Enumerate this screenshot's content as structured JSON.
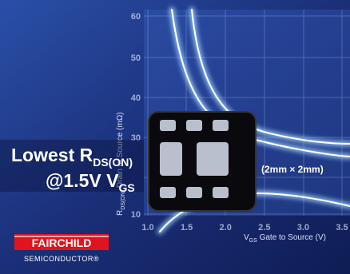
{
  "headline": {
    "line1": "Lowest R",
    "line1_sub": "DS(ON)",
    "line2": "@1.5V V",
    "line2_sub": "GS"
  },
  "package_label": "(2mm × 2mm)",
  "graph": {
    "y_axis_title": {
      "symbol": "R",
      "sub": "DS(ON)",
      "text": " Drain to Source (mΩ)"
    },
    "x_axis_title": {
      "symbol": "V",
      "sub": "GS",
      "text": " Gate to Source (V)"
    },
    "y_ticks": [
      60,
      50,
      40,
      30,
      10
    ],
    "x_ticks": [
      "1.0",
      "1.5",
      "2.0",
      "2.5",
      "3.0",
      "3.5"
    ]
  },
  "logo": {
    "name": "FAIRCHILD",
    "subtitle": "SEMICONDUCTOR®"
  }
}
